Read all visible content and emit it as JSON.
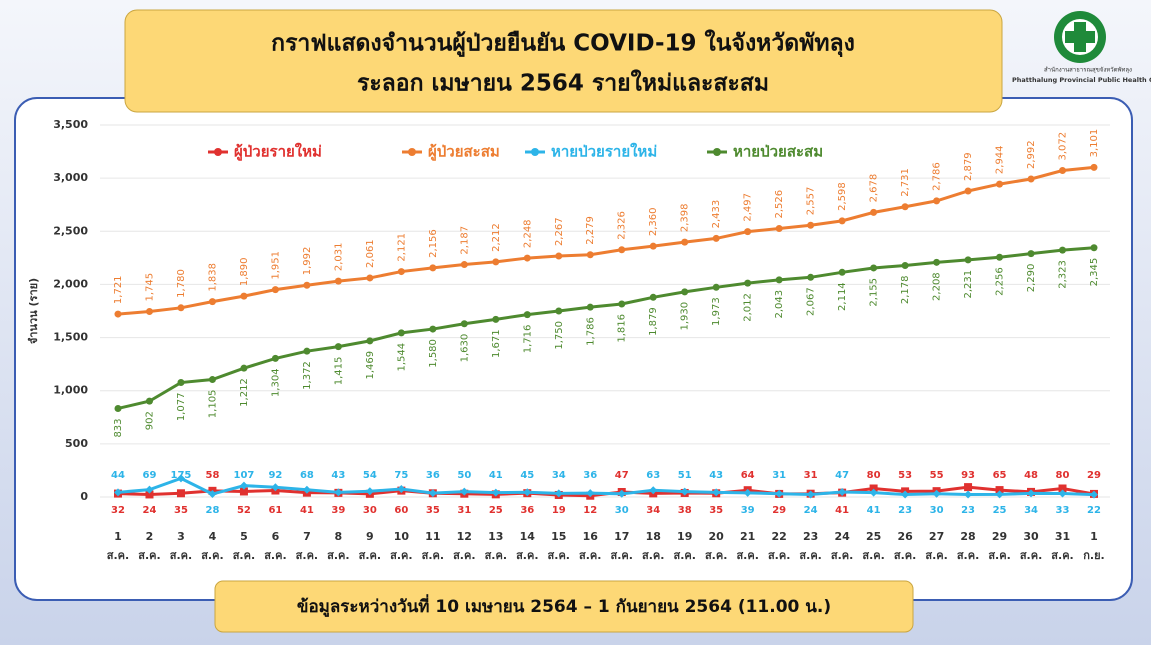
{
  "logo": {
    "org_th": "สำนักงานสาธารณสุขจังหวัดพัทลุง",
    "org_en": "Phatthalung Provincial Public Health Office"
  },
  "chart_data": {
    "type": "line",
    "title": "กราฟแสดงจำนวนผู้ป่วยยืนยัน COVID-19 ในจังหวัดพัทลุง",
    "subtitle": "ระลอก เมษายน 2564 รายใหม่และสะสม",
    "y_label": "จำนวน (ราย)",
    "note": "ข้อมูลระหว่างวันที่ 10 เมษายน 2564 – 1 กันยายน 2564 (11.00 น.)",
    "categories": [
      "1 ส.ค.",
      "2 ส.ค.",
      "3 ส.ค.",
      "4 ส.ค.",
      "5 ส.ค.",
      "6 ส.ค.",
      "7 ส.ค.",
      "8 ส.ค.",
      "9 ส.ค.",
      "10 ส.ค.",
      "11 ส.ค.",
      "12 ส.ค.",
      "13 ส.ค.",
      "14 ส.ค.",
      "15 ส.ค.",
      "16 ส.ค.",
      "17 ส.ค.",
      "18 ส.ค.",
      "19 ส.ค.",
      "20 ส.ค.",
      "21 ส.ค.",
      "22 ส.ค.",
      "23 ส.ค.",
      "24 ส.ค.",
      "25 ส.ค.",
      "26 ส.ค.",
      "27 ส.ค.",
      "28 ส.ค.",
      "29 ส.ค.",
      "30 ส.ค.",
      "31 ส.ค.",
      "1 ก.ย."
    ],
    "series": [
      {
        "name": "ผู้ป่วยรายใหม่",
        "color": "#e0312f",
        "marker": "square",
        "values": [
          32,
          24,
          35,
          58,
          52,
          61,
          41,
          39,
          30,
          60,
          35,
          31,
          25,
          36,
          19,
          12,
          47,
          34,
          38,
          35,
          64,
          29,
          31,
          41,
          80,
          53,
          55,
          93,
          65,
          48,
          80,
          29
        ]
      },
      {
        "name": "ผู้ป่วยสะสม",
        "color": "#ed7d31",
        "marker": "circle",
        "values": [
          1721,
          1745,
          1780,
          1838,
          1890,
          1951,
          1992,
          2031,
          2061,
          2121,
          2156,
          2187,
          2212,
          2248,
          2267,
          2279,
          2326,
          2360,
          2398,
          2433,
          2497,
          2526,
          2557,
          2598,
          2678,
          2731,
          2786,
          2879,
          2944,
          2992,
          3072,
          3101
        ],
        "value_labels": [
          "1,721",
          "1,745",
          "1,780",
          "1,838",
          "1,890",
          "1,951",
          "1,992",
          "2,031",
          "2,061",
          "2,121",
          "2,156",
          "2,187",
          "2,212",
          "2,248",
          "2,267",
          "2,279",
          "2,326",
          "2,360",
          "2,398",
          "2,433",
          "2,497",
          "2,526",
          "2,557",
          "2,598",
          "2,678",
          "2,731",
          "2,786",
          "2,879",
          "2,944",
          "2,992",
          "3,072",
          "3,101"
        ]
      },
      {
        "name": "หายป่วยรายใหม่",
        "color": "#2db4e8",
        "marker": "diamond",
        "values": [
          44,
          69,
          175,
          28,
          107,
          92,
          68,
          43,
          54,
          75,
          36,
          50,
          41,
          45,
          34,
          36,
          30,
          63,
          51,
          43,
          39,
          31,
          24,
          47,
          41,
          23,
          30,
          23,
          25,
          34,
          33,
          22
        ]
      },
      {
        "name": "หายป่วยสะสม",
        "color": "#4e8a2f",
        "marker": "circle",
        "values": [
          833,
          902,
          1077,
          1105,
          1212,
          1304,
          1372,
          1415,
          1469,
          1544,
          1580,
          1630,
          1671,
          1716,
          1750,
          1786,
          1816,
          1879,
          1930,
          1973,
          2012,
          2043,
          2067,
          2114,
          2155,
          2178,
          2208,
          2231,
          2256,
          2290,
          2323,
          2345
        ],
        "value_labels": [
          "833",
          "902",
          "1,077",
          "1,105",
          "1,212",
          "1,304",
          "1,372",
          "1,415",
          "1,469",
          "1,544",
          "1,580",
          "1,630",
          "1,671",
          "1,716",
          "1,750",
          "1,786",
          "1,816",
          "1,879",
          "1,930",
          "1,973",
          "2,012",
          "2,043",
          "2,067",
          "2,114",
          "2,155",
          "2,178",
          "2,208",
          "2,231",
          "2,256",
          "2,290",
          "2,323",
          "2,345"
        ]
      }
    ],
    "ylim": [
      0,
      3500
    ],
    "yticks": [
      0,
      500,
      {
        "value": 1000,
        "label": "1,000"
      },
      {
        "value": 1500,
        "label": "1,500"
      },
      {
        "value": 2000,
        "label": "2,000"
      },
      {
        "value": 2500,
        "label": "2,500"
      },
      {
        "value": 3000,
        "label": "3,000"
      },
      {
        "value": 3500,
        "label": "3,500"
      }
    ],
    "grid": true
  }
}
